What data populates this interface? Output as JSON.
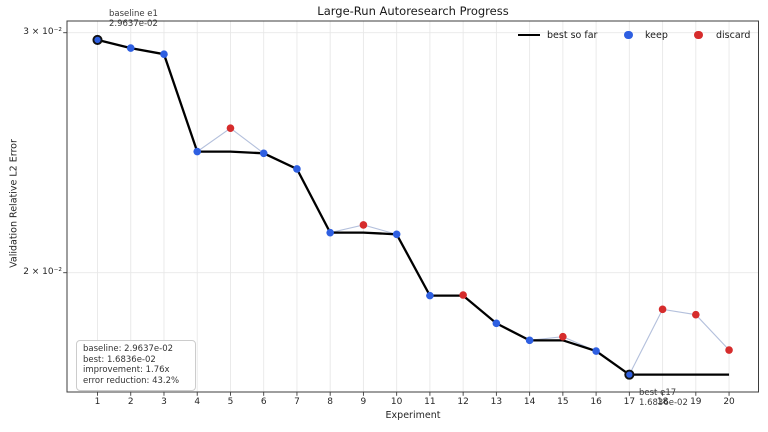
{
  "chart_data": {
    "type": "line",
    "title": "Large-Run Autoresearch Progress",
    "xlabel": "Experiment",
    "ylabel": "Validation Relative L2 Error",
    "yscale": "log",
    "grid": true,
    "legend_position": "top-right-inside",
    "yticks": [
      {
        "value": 0.03,
        "label": "3 × 10⁻²"
      },
      {
        "value": 0.02,
        "label": "2 × 10⁻²"
      }
    ],
    "xticks": [
      1,
      2,
      3,
      4,
      5,
      6,
      7,
      8,
      9,
      10,
      11,
      12,
      13,
      14,
      15,
      16,
      17,
      18,
      19,
      20
    ],
    "legend": [
      {
        "label": "best so far",
        "type": "line",
        "color": "#000000"
      },
      {
        "label": "keep",
        "type": "dot",
        "color": "#2e5fe1"
      },
      {
        "label": "discard",
        "type": "dot",
        "color": "#d62c2c"
      }
    ],
    "colors": {
      "best_line": "#000000",
      "raw_line": "#b4c0dc",
      "keep": "#2e5fe1",
      "discard": "#d62c2c",
      "grid": "#e8e8e8",
      "spine": "#3d3d3d"
    },
    "experiments": [
      {
        "x": 1,
        "value": 0.029637,
        "status": "keep",
        "ring": true
      },
      {
        "x": 2,
        "value": 0.02923,
        "status": "keep"
      },
      {
        "x": 3,
        "value": 0.02893,
        "status": "keep"
      },
      {
        "x": 4,
        "value": 0.02454,
        "status": "keep"
      },
      {
        "x": 5,
        "value": 0.02553,
        "status": "discard"
      },
      {
        "x": 6,
        "value": 0.02447,
        "status": "keep"
      },
      {
        "x": 7,
        "value": 0.02383,
        "status": "keep"
      },
      {
        "x": 8,
        "value": 0.0214,
        "status": "keep"
      },
      {
        "x": 9,
        "value": 0.02168,
        "status": "discard"
      },
      {
        "x": 10,
        "value": 0.02134,
        "status": "keep"
      },
      {
        "x": 11,
        "value": 0.01924,
        "status": "keep"
      },
      {
        "x": 12,
        "value": 0.01926,
        "status": "discard"
      },
      {
        "x": 13,
        "value": 0.01836,
        "status": "keep"
      },
      {
        "x": 14,
        "value": 0.01784,
        "status": "keep"
      },
      {
        "x": 15,
        "value": 0.01795,
        "status": "discard"
      },
      {
        "x": 16,
        "value": 0.01752,
        "status": "keep"
      },
      {
        "x": 17,
        "value": 0.016836,
        "status": "keep",
        "ring": true
      },
      {
        "x": 18,
        "value": 0.0188,
        "status": "discard"
      },
      {
        "x": 19,
        "value": 0.01863,
        "status": "discard"
      },
      {
        "x": 20,
        "value": 0.01755,
        "status": "discard"
      }
    ],
    "annotations": [
      {
        "lines": [
          "baseline e1",
          "2.9637e-02"
        ]
      },
      {
        "lines": [
          "best e17",
          "1.6836e-02"
        ]
      }
    ],
    "stats_box": [
      "baseline: 2.9637e-02",
      "best: 1.6836e-02",
      "improvement: 1.76x",
      "error reduction: 43.2%"
    ]
  }
}
